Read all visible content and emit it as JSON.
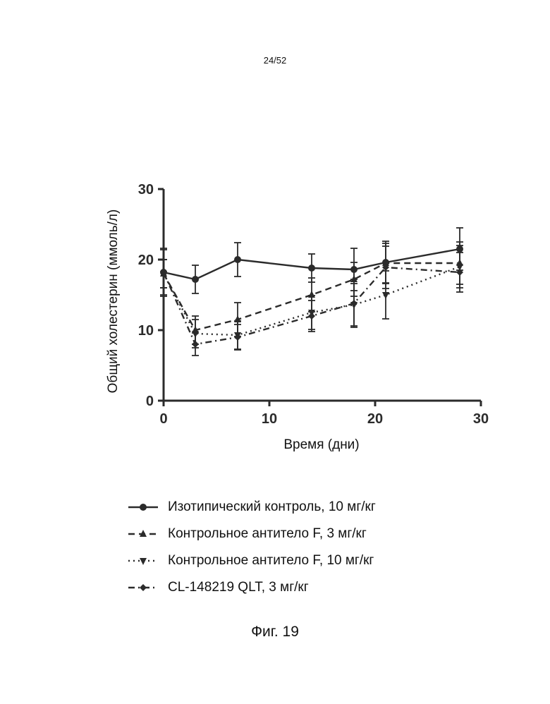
{
  "page": {
    "number": "24/52",
    "caption": "Фиг. 19"
  },
  "chart_data": {
    "type": "line",
    "xlabel": "Время (дни)",
    "ylabel": "Общий холестерин (ммоль/л)",
    "xlim": [
      0,
      30
    ],
    "ylim": [
      0,
      30
    ],
    "x_ticks": [
      "0",
      "10",
      "20",
      "30"
    ],
    "y_ticks": [
      "0",
      "10",
      "20",
      "30"
    ],
    "legend_position": "below",
    "grid": false,
    "series": [
      {
        "name": "Изотипический контроль, 10 мг/кг",
        "line": "solid",
        "marker": "circle",
        "x": [
          0,
          3,
          7,
          14,
          18,
          21,
          28
        ],
        "y": [
          18.2,
          17.2,
          20.0,
          18.8,
          18.6,
          19.6,
          21.5
        ],
        "err": [
          3.2,
          2.0,
          2.4,
          2.0,
          3.0,
          3.0,
          3.0
        ]
      },
      {
        "name": "Контрольное антитело F, 3 мг/кг",
        "line": "dashed",
        "marker": "triangle-up",
        "x": [
          0,
          3,
          7,
          14,
          18,
          21,
          28
        ],
        "y": [
          18.0,
          10.0,
          11.5,
          15.0,
          17.2,
          19.5,
          19.5
        ],
        "err": [
          2.0,
          2.0,
          2.4,
          2.4,
          2.4,
          2.8,
          3.0
        ]
      },
      {
        "name": "Контрольное антитело F, 10 мг/кг",
        "line": "dotted",
        "marker": "triangle-down",
        "x": [
          0,
          3,
          7,
          14,
          18,
          21,
          28
        ],
        "y": [
          18.0,
          9.5,
          9.3,
          12.5,
          13.6,
          15.0,
          19.0
        ],
        "err": [
          2.0,
          2.0,
          2.0,
          2.4,
          3.0,
          3.4,
          3.0
        ]
      },
      {
        "name": "CL-148219 QLT, 3 мг/кг",
        "line": "dash-dot",
        "marker": "diamond",
        "x": [
          0,
          3,
          7,
          14,
          18,
          21,
          28
        ],
        "y": [
          18.2,
          8.0,
          9.0,
          12.0,
          13.8,
          18.9,
          18.2
        ],
        "err": [
          3.4,
          1.6,
          1.8,
          2.2,
          3.4,
          3.0,
          2.8
        ]
      }
    ]
  }
}
